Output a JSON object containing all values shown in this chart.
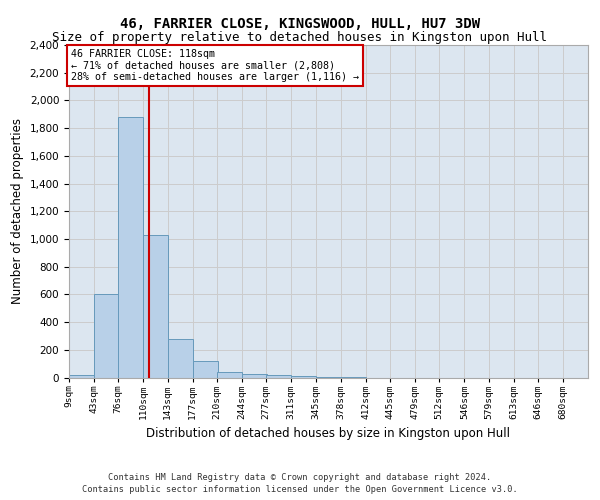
{
  "title1": "46, FARRIER CLOSE, KINGSWOOD, HULL, HU7 3DW",
  "title2": "Size of property relative to detached houses in Kingston upon Hull",
  "xlabel": "Distribution of detached houses by size in Kingston upon Hull",
  "ylabel": "Number of detached properties",
  "footer1": "Contains HM Land Registry data © Crown copyright and database right 2024.",
  "footer2": "Contains public sector information licensed under the Open Government Licence v3.0.",
  "annotation_line1": "46 FARRIER CLOSE: 118sqm",
  "annotation_line2": "← 71% of detached houses are smaller (2,808)",
  "annotation_line3": "28% of semi-detached houses are larger (1,116) →",
  "bin_labels": [
    "9sqm",
    "43sqm",
    "76sqm",
    "110sqm",
    "143sqm",
    "177sqm",
    "210sqm",
    "244sqm",
    "277sqm",
    "311sqm",
    "345sqm",
    "378sqm",
    "412sqm",
    "445sqm",
    "479sqm",
    "512sqm",
    "546sqm",
    "579sqm",
    "613sqm",
    "646sqm",
    "680sqm"
  ],
  "bin_edges": [
    9,
    43,
    76,
    110,
    143,
    177,
    210,
    244,
    277,
    311,
    345,
    378,
    412,
    445,
    479,
    512,
    546,
    579,
    613,
    646,
    680
  ],
  "bar_values": [
    20,
    600,
    1880,
    1030,
    280,
    120,
    40,
    25,
    20,
    8,
    3,
    1,
    0,
    0,
    0,
    0,
    0,
    0,
    0,
    0
  ],
  "bar_color": "#b8d0e8",
  "bar_edge_color": "#6699bb",
  "vline_x": 118,
  "vline_color": "#cc0000",
  "ylim_max": 2400,
  "yticks": [
    0,
    200,
    400,
    600,
    800,
    1000,
    1200,
    1400,
    1600,
    1800,
    2000,
    2200,
    2400
  ],
  "grid_color": "#cccccc",
  "bg_color": "#dce6f0",
  "annotation_box_color": "#cc0000",
  "title_fontsize": 10,
  "subtitle_fontsize": 9
}
